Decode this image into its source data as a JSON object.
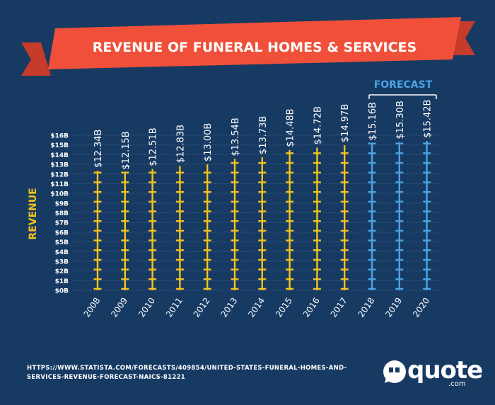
{
  "title": "REVENUE OF FUNERAL HOMES & SERVICES",
  "forecast_label": "FORECAST",
  "source_lines": [
    "HTTPS://WWW.STATISTA.COM/FORECASTS/409854/UNITED-STATES-FUNERAL-HOMES-AND-",
    "SERVICES-REVENUE-FORECAST-NAICS-81221"
  ],
  "logo": {
    "word": "quote",
    "domain": ".com"
  },
  "colors": {
    "background": "#173a63",
    "banner": "#f0503a",
    "banner_dark": "#c63b2a",
    "actual": "#f4c21b",
    "forecast": "#4ba3e3",
    "text": "#ffffff"
  },
  "chart_data": {
    "type": "bar",
    "title": "REVENUE OF FUNERAL HOMES & SERVICES",
    "xlabel": "",
    "ylabel": "REVENUE",
    "ylim": [
      0,
      16
    ],
    "yticks": [
      "$0B",
      "$1B",
      "$2B",
      "$3B",
      "$4B",
      "$5B",
      "$6B",
      "$7B",
      "$8B",
      "$9B",
      "$10B",
      "$11B",
      "$12B",
      "$13B",
      "$14B",
      "$15B",
      "$16B"
    ],
    "categories": [
      "2008",
      "2009",
      "2010",
      "2011",
      "2012",
      "2013",
      "2014",
      "2015",
      "2016",
      "2017",
      "2018",
      "2019",
      "2020"
    ],
    "values": [
      12.34,
      12.15,
      12.51,
      12.83,
      13.0,
      13.54,
      13.73,
      14.48,
      14.72,
      14.97,
      15.16,
      15.3,
      15.42
    ],
    "labels": [
      "$12.34B",
      "$12.15B",
      "$12.51B",
      "$12.83B",
      "$13.00B",
      "$13.54B",
      "$13.73B",
      "$14.48B",
      "$14.72B",
      "$14.97B",
      "$15.16B",
      "$15.30B",
      "$15.42B"
    ],
    "forecast": [
      false,
      false,
      false,
      false,
      false,
      false,
      false,
      false,
      false,
      false,
      true,
      true,
      true
    ],
    "grid": true
  }
}
